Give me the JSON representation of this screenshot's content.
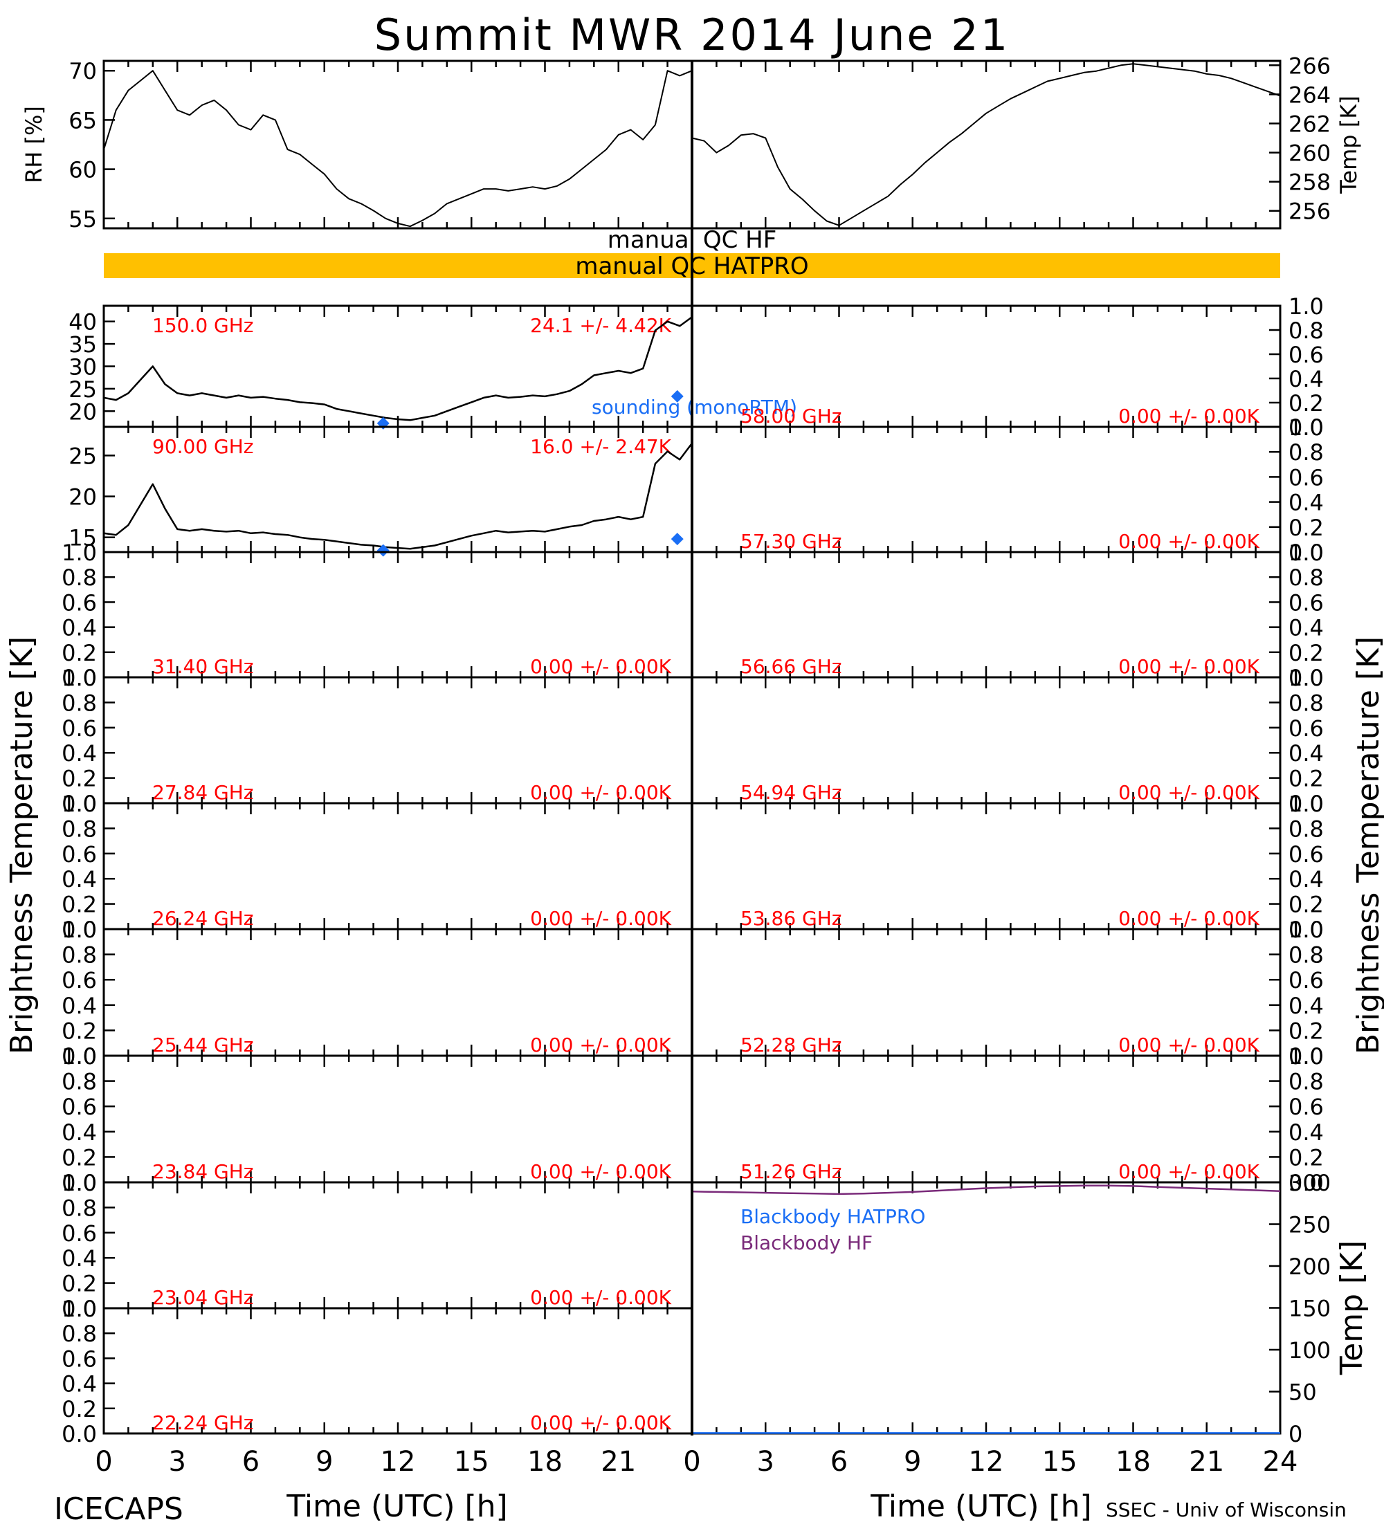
{
  "title": "Summit MWR 2014 June 21",
  "footer": {
    "left": "ICECAPS",
    "right": "SSEC - Univ of Wisconsin",
    "xlabel_left": "Time (UTC) [h]",
    "xlabel_right": "Time (UTC) [h]"
  },
  "x_ticks": [
    "0",
    "3",
    "6",
    "9",
    "12",
    "15",
    "18",
    "21"
  ],
  "x_ticks_right": [
    "0",
    "3",
    "6",
    "9",
    "12",
    "15",
    "18",
    "21",
    "24"
  ],
  "colors": {
    "label_red": "#ff0000",
    "sounding_blue": "#1a6ef5",
    "qc_bar": "#ffc000",
    "blackbody_hf": "#7a2a7a"
  },
  "qc": {
    "hf_label": "manual QC HF",
    "hatpro_label": "manual QC HATPRO",
    "hatpro_flag": "manual"
  },
  "chart_data": [
    {
      "type": "line",
      "panel": "rh",
      "ylabel": "RH [%]",
      "ylim": [
        54,
        71
      ],
      "yticks": [
        "55",
        "60",
        "65",
        "70"
      ],
      "x_range": [
        0,
        24
      ],
      "series": [
        {
          "x": [
            0,
            0.5,
            1.0,
            1.5,
            2.0,
            2.5,
            3.0,
            3.5,
            4.0,
            4.5,
            5.0,
            5.5,
            6.0,
            6.5,
            7.0,
            7.5,
            8.0,
            8.5,
            9.0,
            9.5,
            10.0,
            10.5,
            11.0,
            11.5,
            12.0,
            12.5,
            13.0,
            13.5,
            14.0,
            14.5,
            15.0,
            15.5,
            16.0,
            16.5,
            17.0,
            17.5,
            18.0,
            18.5,
            19.0,
            19.5,
            20.0,
            20.5,
            21.0,
            21.5,
            22.0,
            22.5,
            23.0,
            23.5,
            24.0
          ],
          "y": [
            62,
            66,
            68,
            69,
            70,
            68,
            66,
            65.5,
            66.5,
            67,
            66,
            64.5,
            64,
            65.5,
            65,
            62,
            61.5,
            60.5,
            59.5,
            58,
            57,
            56.5,
            55.8,
            55,
            54.5,
            54.2,
            54.8,
            55.5,
            56.5,
            57,
            57.5,
            58,
            58,
            57.8,
            58,
            58.2,
            58,
            58.3,
            59,
            60,
            61,
            62,
            63.5,
            64,
            63,
            64.5,
            70,
            69.5,
            70
          ]
        }
      ]
    },
    {
      "type": "line",
      "panel": "temp",
      "ylabel": "Temp [K]",
      "ylim": [
        254.8,
        266.3
      ],
      "yticks": [
        "256",
        "258",
        "260",
        "262",
        "264",
        "266"
      ],
      "x_range": [
        0,
        24
      ],
      "series": [
        {
          "x": [
            0,
            0.5,
            1.0,
            1.5,
            2.0,
            2.5,
            3.0,
            3.5,
            4.0,
            4.5,
            5.0,
            5.5,
            6.0,
            6.5,
            7.0,
            7.5,
            8.0,
            8.5,
            9.0,
            9.5,
            10.0,
            10.5,
            11.0,
            11.5,
            12.0,
            12.5,
            13.0,
            13.5,
            14.0,
            14.5,
            15.0,
            15.5,
            16.0,
            16.5,
            17.0,
            17.5,
            18.0,
            18.5,
            19.0,
            19.5,
            20.0,
            20.5,
            21.0,
            21.5,
            22.0,
            22.5,
            23.0,
            23.5,
            24.0
          ],
          "y": [
            261,
            260.8,
            260,
            260.5,
            261.2,
            261.3,
            261,
            259,
            257.5,
            256.8,
            256,
            255.3,
            255,
            255.5,
            256,
            256.5,
            257,
            257.8,
            258.5,
            259.3,
            260,
            260.7,
            261.3,
            262,
            262.7,
            263.2,
            263.7,
            264.1,
            264.5,
            264.9,
            265.1,
            265.3,
            265.5,
            265.6,
            265.8,
            266,
            266.1,
            266,
            265.9,
            265.8,
            265.7,
            265.6,
            265.4,
            265.3,
            265.1,
            264.8,
            264.5,
            264.2,
            263.9
          ]
        }
      ]
    },
    {
      "type": "line",
      "panel": "tb_150",
      "side": "left",
      "freq_label": "150.0 GHz",
      "stat_label": "24.1 +/-  4.42K",
      "ylim": [
        16.5,
        43.5
      ],
      "yticks": [
        "20",
        "25",
        "30",
        "35",
        "40"
      ],
      "x_range": [
        0,
        24
      ],
      "series": [
        {
          "x": [
            0,
            0.5,
            1.0,
            1.5,
            2.0,
            2.5,
            3.0,
            3.5,
            4.0,
            4.5,
            5.0,
            5.5,
            6.0,
            6.5,
            7.0,
            7.5,
            8.0,
            8.5,
            9.0,
            9.5,
            10.0,
            10.5,
            11.0,
            11.5,
            12.0,
            12.5,
            13.0,
            13.5,
            14.0,
            14.5,
            15.0,
            15.5,
            16.0,
            16.5,
            17.0,
            17.5,
            18.0,
            18.5,
            19.0,
            19.5,
            20.0,
            20.5,
            21.0,
            21.5,
            22.0,
            22.5,
            23.0,
            23.5,
            24.0
          ],
          "y": [
            23,
            22.5,
            24,
            27,
            30,
            26,
            24,
            23.5,
            24,
            23.5,
            23,
            23.5,
            23,
            23.2,
            22.8,
            22.5,
            22,
            21.8,
            21.5,
            20.5,
            20,
            19.5,
            19,
            18.5,
            18.2,
            18,
            18.5,
            19,
            20,
            21,
            22,
            23,
            23.5,
            23,
            23.2,
            23.5,
            23.3,
            23.8,
            24.5,
            26,
            28,
            28.5,
            29,
            28.5,
            29.5,
            38,
            40,
            39,
            41
          ]
        },
        {
          "name": "sounding (monoRTM)",
          "type": "scatter",
          "x": [
            11.4,
            23.4
          ],
          "y": [
            17.3,
            23.3
          ]
        }
      ]
    },
    {
      "type": "line",
      "panel": "tb_90",
      "side": "left",
      "freq_label": "90.00 GHz",
      "stat_label": "16.0 +/-  2.47K",
      "ylim": [
        13.2,
        28.5
      ],
      "yticks": [
        "15",
        "20",
        "25"
      ],
      "x_range": [
        0,
        24
      ],
      "series": [
        {
          "x": [
            0,
            0.5,
            1.0,
            1.5,
            2.0,
            2.5,
            3.0,
            3.5,
            4.0,
            4.5,
            5.0,
            5.5,
            6.0,
            6.5,
            7.0,
            7.5,
            8.0,
            8.5,
            9.0,
            9.5,
            10.0,
            10.5,
            11.0,
            11.5,
            12.0,
            12.5,
            13.0,
            13.5,
            14.0,
            14.5,
            15.0,
            15.5,
            16.0,
            16.5,
            17.0,
            17.5,
            18.0,
            18.5,
            19.0,
            19.5,
            20.0,
            20.5,
            21.0,
            21.5,
            22.0,
            22.5,
            23.0,
            23.5,
            24.0
          ],
          "y": [
            15.5,
            15.3,
            16.5,
            19,
            21.5,
            18.5,
            16,
            15.8,
            16,
            15.8,
            15.7,
            15.8,
            15.5,
            15.6,
            15.4,
            15.3,
            15,
            14.8,
            14.7,
            14.5,
            14.3,
            14.1,
            14,
            13.8,
            13.7,
            13.6,
            13.8,
            14,
            14.4,
            14.8,
            15.2,
            15.5,
            15.8,
            15.6,
            15.7,
            15.8,
            15.7,
            16,
            16.3,
            16.5,
            17,
            17.2,
            17.5,
            17.2,
            17.5,
            24,
            25.5,
            24.5,
            26.5
          ]
        },
        {
          "name": "sounding (monoRTM)",
          "type": "scatter",
          "x": [
            11.4,
            23.4
          ],
          "y": [
            13.4,
            14.8
          ]
        }
      ]
    },
    {
      "type": "line",
      "panel": "tb_3140",
      "side": "left",
      "freq_label": "31.40 GHz",
      "stat_label": "0.00 +/-  0.00K",
      "ylim": [
        0,
        1
      ],
      "yticks": [
        "0.0",
        "0.2",
        "0.4",
        "0.6",
        "0.8",
        "1.0"
      ],
      "x_range": [
        0,
        24
      ],
      "series": []
    },
    {
      "type": "line",
      "panel": "tb_2784",
      "side": "left",
      "freq_label": "27.84 GHz",
      "stat_label": "0.00 +/-  0.00K",
      "ylim": [
        0,
        1
      ],
      "yticks": [
        "0.0",
        "0.2",
        "0.4",
        "0.6",
        "0.8",
        "1.0"
      ],
      "x_range": [
        0,
        24
      ],
      "series": []
    },
    {
      "type": "line",
      "panel": "tb_2624",
      "side": "left",
      "freq_label": "26.24 GHz",
      "stat_label": "0.00 +/-  0.00K",
      "ylim": [
        0,
        1
      ],
      "yticks": [
        "0.0",
        "0.2",
        "0.4",
        "0.6",
        "0.8",
        "1.0"
      ],
      "x_range": [
        0,
        24
      ],
      "series": []
    },
    {
      "type": "line",
      "panel": "tb_2544",
      "side": "left",
      "freq_label": "25.44 GHz",
      "stat_label": "0.00 +/-  0.00K",
      "ylim": [
        0,
        1
      ],
      "yticks": [
        "0.0",
        "0.2",
        "0.4",
        "0.6",
        "0.8",
        "1.0"
      ],
      "x_range": [
        0,
        24
      ],
      "series": []
    },
    {
      "type": "line",
      "panel": "tb_2384",
      "side": "left",
      "freq_label": "23.84 GHz",
      "stat_label": "0.00 +/-  0.00K",
      "ylim": [
        0,
        1
      ],
      "yticks": [
        "0.0",
        "0.2",
        "0.4",
        "0.6",
        "0.8",
        "1.0"
      ],
      "x_range": [
        0,
        24
      ],
      "series": []
    },
    {
      "type": "line",
      "panel": "tb_2304",
      "side": "left",
      "freq_label": "23.04 GHz",
      "stat_label": "0.00 +/-  0.00K",
      "ylim": [
        0,
        1
      ],
      "yticks": [
        "0.0",
        "0.2",
        "0.4",
        "0.6",
        "0.8",
        "1.0"
      ],
      "x_range": [
        0,
        24
      ],
      "series": []
    },
    {
      "type": "line",
      "panel": "tb_2224",
      "side": "left",
      "freq_label": "22.24 GHz",
      "stat_label": "0.00 +/-  0.00K",
      "ylim": [
        0,
        1
      ],
      "yticks": [
        "0.0",
        "0.2",
        "0.4",
        "0.6",
        "0.8",
        "1.0"
      ],
      "x_range": [
        0,
        24
      ],
      "series": []
    },
    {
      "type": "line",
      "panel": "tb_5800",
      "side": "right",
      "freq_label": "58.00 GHz",
      "stat_label": "0.00 +/-  0.00K",
      "ylim": [
        0,
        1
      ],
      "yticks": [
        "0.0",
        "0.2",
        "0.4",
        "0.6",
        "0.8",
        "1.0"
      ],
      "x_range": [
        0,
        24
      ],
      "series": []
    },
    {
      "type": "line",
      "panel": "tb_5730",
      "side": "right",
      "freq_label": "57.30 GHz",
      "stat_label": "0.00 +/-  0.00K",
      "ylim": [
        0,
        1
      ],
      "yticks": [
        "0.0",
        "0.2",
        "0.4",
        "0.6",
        "0.8",
        "1.0"
      ],
      "x_range": [
        0,
        24
      ],
      "series": []
    },
    {
      "type": "line",
      "panel": "tb_5666",
      "side": "right",
      "freq_label": "56.66 GHz",
      "stat_label": "0.00 +/-  0.00K",
      "ylim": [
        0,
        1
      ],
      "yticks": [
        "0.0",
        "0.2",
        "0.4",
        "0.6",
        "0.8",
        "1.0"
      ],
      "x_range": [
        0,
        24
      ],
      "series": []
    },
    {
      "type": "line",
      "panel": "tb_5494",
      "side": "right",
      "freq_label": "54.94 GHz",
      "stat_label": "0.00 +/-  0.00K",
      "ylim": [
        0,
        1
      ],
      "yticks": [
        "0.0",
        "0.2",
        "0.4",
        "0.6",
        "0.8",
        "1.0"
      ],
      "x_range": [
        0,
        24
      ],
      "series": []
    },
    {
      "type": "line",
      "panel": "tb_5386",
      "side": "right",
      "freq_label": "53.86 GHz",
      "stat_label": "0.00 +/-  0.00K",
      "ylim": [
        0,
        1
      ],
      "yticks": [
        "0.0",
        "0.2",
        "0.4",
        "0.6",
        "0.8",
        "1.0"
      ],
      "x_range": [
        0,
        24
      ],
      "series": []
    },
    {
      "type": "line",
      "panel": "tb_5228",
      "side": "right",
      "freq_label": "52.28 GHz",
      "stat_label": "0.00 +/-  0.00K",
      "ylim": [
        0,
        1
      ],
      "yticks": [
        "0.0",
        "0.2",
        "0.4",
        "0.6",
        "0.8",
        "1.0"
      ],
      "x_range": [
        0,
        24
      ],
      "series": []
    },
    {
      "type": "line",
      "panel": "tb_5126",
      "side": "right",
      "freq_label": "51.26 GHz",
      "stat_label": "0.00 +/-  0.00K",
      "ylim": [
        0,
        1
      ],
      "yticks": [
        "0.0",
        "0.2",
        "0.4",
        "0.6",
        "0.8",
        "1.0"
      ],
      "x_range": [
        0,
        24
      ],
      "series": []
    },
    {
      "type": "line",
      "panel": "blackbody",
      "ylabel": "Temp [K]",
      "ylim": [
        0,
        300
      ],
      "yticks": [
        "0",
        "50",
        "100",
        "150",
        "200",
        "250",
        "300"
      ],
      "x_range": [
        0,
        24
      ],
      "series": [
        {
          "name": "Blackbody HATPRO",
          "x": [
            0,
            24
          ],
          "y": [
            0.5,
            0.5
          ]
        },
        {
          "name": "Blackbody HF",
          "x": [
            0,
            1,
            2,
            3,
            4,
            5,
            6,
            7,
            8,
            9,
            10,
            11,
            12,
            13,
            14,
            15,
            16,
            17,
            18,
            19,
            20,
            21,
            22,
            23,
            24
          ],
          "y": [
            289,
            288.5,
            288,
            287.5,
            287,
            286.5,
            286,
            286.5,
            287.5,
            288.5,
            290,
            291.5,
            293,
            294,
            295,
            295.5,
            296,
            296,
            295.5,
            294.5,
            293.5,
            292.5,
            291.5,
            290.5,
            289.5
          ]
        }
      ]
    }
  ],
  "axis_labels": {
    "brightness_left": "Brightness Temperature [K]",
    "brightness_right": "Brightness Temperature [K]"
  }
}
